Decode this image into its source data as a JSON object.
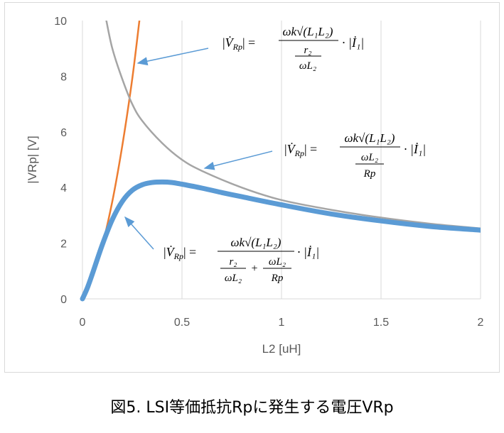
{
  "caption": "図5. LSI等価抵抗Rpに発生する電圧VRp",
  "colors": {
    "orange": "#ED7D31",
    "gray": "#A5A5A5",
    "blue": "#5B9BD5",
    "grid": "#D9D9D9",
    "text": "#595959"
  },
  "chart_data": {
    "type": "line",
    "xlabel": "L2 [uH]",
    "ylabel": "|VRp| [V]",
    "xlim": [
      0,
      2
    ],
    "ylim": [
      0,
      10
    ],
    "x_ticks": [
      "0",
      "0.5",
      "1",
      "1.5",
      "2"
    ],
    "y_ticks": [
      "0",
      "2",
      "4",
      "6",
      "8",
      "10"
    ],
    "grid": "vertical",
    "legend": "none",
    "series": [
      {
        "color": "#ED7D31",
        "x": [
          0,
          0.025,
          0.05,
          0.075,
          0.1,
          0.15,
          0.2,
          0.25,
          0.286
        ],
        "y": [
          0,
          0.28,
          0.75,
          1.3,
          1.9,
          3.5,
          5.5,
          7.9,
          10
        ]
      },
      {
        "color": "#A5A5A5",
        "x": [
          0.12,
          0.15,
          0.2,
          0.25,
          0.3,
          0.4,
          0.5,
          0.6,
          0.8,
          1.0,
          1.25,
          1.5,
          1.75,
          2.0
        ],
        "y": [
          10,
          9.0,
          7.9,
          7.0,
          6.4,
          5.6,
          5.0,
          4.6,
          4.0,
          3.55,
          3.2,
          2.92,
          2.7,
          2.53
        ]
      },
      {
        "color": "#5B9BD5",
        "x": [
          0,
          0.025,
          0.05,
          0.1,
          0.15,
          0.2,
          0.25,
          0.3,
          0.35,
          0.4,
          0.45,
          0.5,
          0.6,
          0.7,
          0.8,
          1.0,
          1.25,
          1.5,
          1.75,
          2.0
        ],
        "y": [
          0,
          0.4,
          0.9,
          1.95,
          2.85,
          3.5,
          3.9,
          4.1,
          4.18,
          4.2,
          4.18,
          4.12,
          3.98,
          3.82,
          3.67,
          3.38,
          3.05,
          2.8,
          2.6,
          2.47
        ]
      }
    ],
    "annotations": [
      {
        "target": "orange",
        "abs_lhs": "V̇",
        "abs_sub": "Rp",
        "numerator": "ωk√(L₁L₂)",
        "denominator": [
          "r₂",
          "ωL₂"
        ],
        "factor": "· |İ₁|"
      },
      {
        "target": "gray",
        "abs_lhs": "V̇",
        "abs_sub": "Rp",
        "numerator": "ωk√(L₁L₂)",
        "denominator": [
          "ωL₂",
          "Rp"
        ],
        "factor": "· |İ₁|"
      },
      {
        "target": "blue",
        "abs_lhs": "V̇",
        "abs_sub": "Rp",
        "numerator": "ωk√(L₁L₂)",
        "denominator": [
          "r₂",
          "ωL₂",
          "+",
          "ωL₂",
          "Rp"
        ],
        "factor": "· |İ₁|"
      }
    ]
  }
}
